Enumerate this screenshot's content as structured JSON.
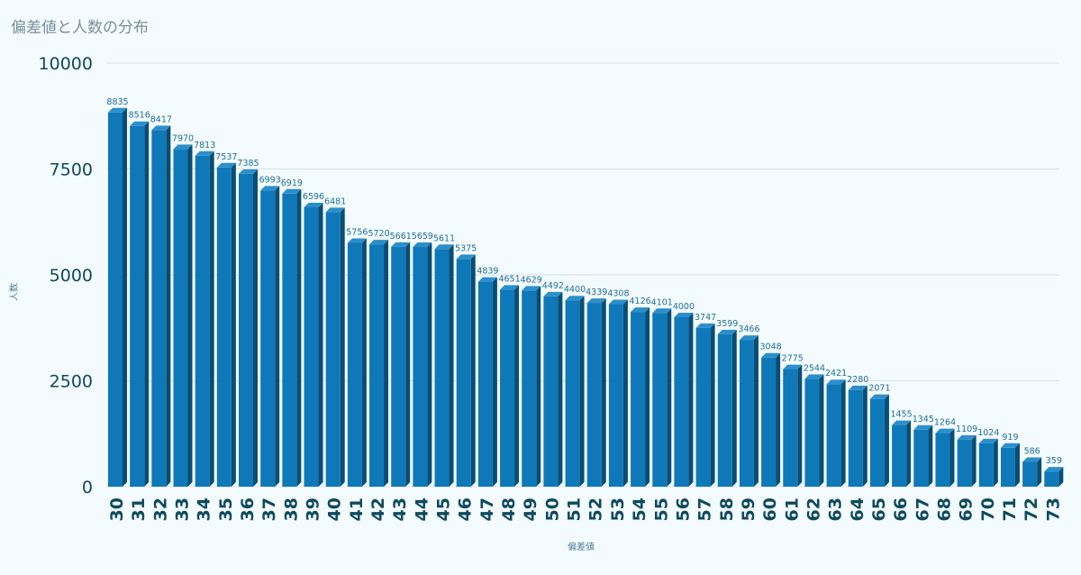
{
  "chart_data": {
    "type": "bar",
    "title": "偏差値と人数の分布",
    "xlabel": "偏差値",
    "ylabel": "人数",
    "ylim": [
      0,
      10000
    ],
    "yticks": [
      0,
      2500,
      5000,
      7500,
      10000
    ],
    "grid": true,
    "legend": "none",
    "colors": {
      "bar_front": "#0f78b8",
      "bar_side": "#0a4d74",
      "bar_top": "#2b8fcb",
      "grid": "#d4e2ea",
      "tick_text": "#0f4a5e",
      "data_label": "#1f6f9a"
    },
    "categories": [
      "30",
      "31",
      "32",
      "33",
      "34",
      "35",
      "36",
      "37",
      "38",
      "39",
      "40",
      "41",
      "42",
      "43",
      "44",
      "45",
      "46",
      "47",
      "48",
      "49",
      "50",
      "51",
      "52",
      "53",
      "54",
      "55",
      "56",
      "57",
      "58",
      "59",
      "60",
      "61",
      "62",
      "63",
      "64",
      "65",
      "66",
      "67",
      "68",
      "69",
      "70",
      "71",
      "72",
      "73"
    ],
    "values": [
      8835,
      8516,
      8417,
      7970,
      7813,
      7537,
      7385,
      6993,
      6919,
      6596,
      6481,
      5756,
      5720,
      5661,
      5659,
      5611,
      5375,
      4839,
      4651,
      4629,
      4492,
      4400,
      4339,
      4308,
      4126,
      4101,
      4000,
      3747,
      3599,
      3466,
      3048,
      2775,
      2544,
      2421,
      2280,
      2071,
      1455,
      1345,
      1264,
      1109,
      1024,
      919,
      586,
      359
    ]
  }
}
